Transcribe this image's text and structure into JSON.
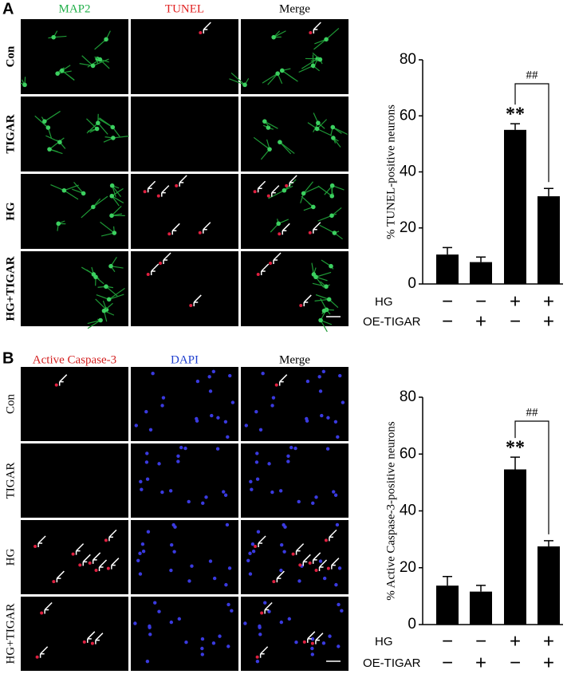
{
  "panel_labels": [
    "A",
    "B"
  ],
  "image_grids": [
    {
      "columns": [
        "MAP2",
        "TUNEL",
        "Merge"
      ],
      "rows": [
        "Con",
        "TIGAR",
        "HG",
        "HG+TIGAR"
      ]
    },
    {
      "columns": [
        "Active Caspase-3",
        "DAPI",
        "Merge"
      ],
      "rows": [
        "Con",
        "TIGAR",
        "HG",
        "HG+TIGAR"
      ]
    }
  ],
  "chart_data": [
    {
      "type": "bar",
      "y_label": "% TUNEL-positive neurons",
      "values": [
        10.5,
        7.8,
        55,
        31.3
      ],
      "errors": [
        2.5,
        1.8,
        2.2,
        2.8
      ],
      "color": "#000000",
      "ylim": [
        0,
        80
      ],
      "yticks": [
        0,
        20,
        40,
        60,
        80
      ],
      "conditions": [
        {
          "name": "HG",
          "signs": [
            "−",
            "−",
            "+",
            "+"
          ]
        },
        {
          "name": "OE-TIGAR",
          "signs": [
            "−",
            "+",
            "−",
            "+"
          ]
        }
      ],
      "annotations": {
        "significance": "**",
        "comparison": "##"
      }
    },
    {
      "type": "bar",
      "y_label": "% Active Caspase-3-positive neurons",
      "values": [
        13.7,
        11.6,
        54.6,
        27.5
      ],
      "errors": [
        3.2,
        2.2,
        4.3,
        2.0
      ],
      "color": "#000000",
      "ylim": [
        0,
        80
      ],
      "yticks": [
        0,
        20,
        40,
        60,
        80
      ],
      "conditions": [
        {
          "name": "HG",
          "signs": [
            "−",
            "−",
            "+",
            "+"
          ]
        },
        {
          "name": "OE-TIGAR",
          "signs": [
            "−",
            "+",
            "−",
            "+"
          ]
        }
      ],
      "annotations": {
        "significance": "**",
        "comparison": "##"
      }
    }
  ]
}
